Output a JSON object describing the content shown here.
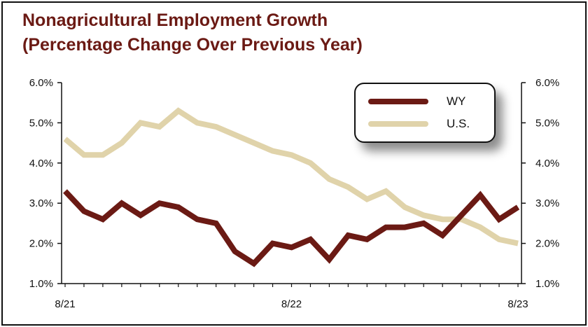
{
  "title": {
    "line1": "Nonagricultural Employment Growth",
    "line2": "(Percentage Change Over Previous Year)"
  },
  "colors": {
    "title": "#6b1a14",
    "wy": "#6b1a14",
    "us": "#e0d3aa"
  },
  "chart_data": {
    "type": "line",
    "x_tick_labels": [
      "8/21",
      "8/22",
      "8/23"
    ],
    "y_tick_labels": [
      "1.0%",
      "2.0%",
      "3.0%",
      "4.0%",
      "5.0%",
      "6.0%"
    ],
    "ylim": [
      1.0,
      6.0
    ],
    "ylabel_right": [
      "1.0%",
      "2.0%",
      "3.0%",
      "4.0%",
      "5.0%",
      "6.0%"
    ],
    "x": [
      "8/21",
      "9/21",
      "10/21",
      "11/21",
      "12/21",
      "1/22",
      "2/22",
      "3/22",
      "4/22",
      "5/22",
      "6/22",
      "7/22",
      "8/22",
      "9/22",
      "10/22",
      "11/22",
      "12/22",
      "1/23",
      "2/23",
      "3/23",
      "4/23",
      "5/23",
      "6/23",
      "7/23",
      "8/23"
    ],
    "series": [
      {
        "name": "WY",
        "color": "#6b1a14",
        "values": [
          3.3,
          2.8,
          2.6,
          3.0,
          2.7,
          3.0,
          2.9,
          2.6,
          2.5,
          1.8,
          1.5,
          2.0,
          1.9,
          2.1,
          1.6,
          2.2,
          2.1,
          2.4,
          2.4,
          2.5,
          2.2,
          2.7,
          3.2,
          2.6,
          2.9
        ]
      },
      {
        "name": "U.S.",
        "color": "#e0d3aa",
        "values": [
          4.6,
          4.2,
          4.2,
          4.5,
          5.0,
          4.9,
          5.3,
          5.0,
          4.9,
          4.7,
          4.5,
          4.3,
          4.2,
          4.0,
          3.6,
          3.4,
          3.1,
          3.3,
          2.9,
          2.7,
          2.6,
          2.6,
          2.4,
          2.1,
          2.0
        ]
      }
    ],
    "legend": {
      "position": "top-right",
      "entries": [
        "WY",
        "U.S."
      ]
    },
    "grid": false
  }
}
